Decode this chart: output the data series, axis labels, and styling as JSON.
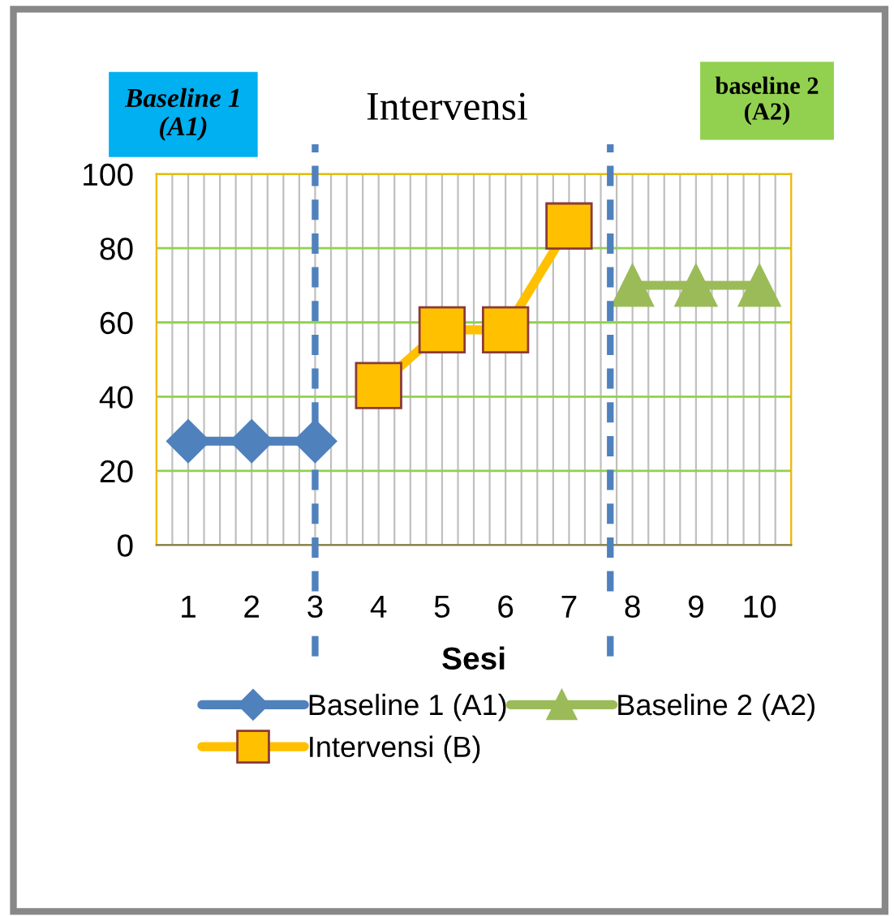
{
  "chart_data": {
    "type": "line",
    "x": [
      1,
      2,
      3,
      4,
      5,
      6,
      7,
      8,
      9,
      10
    ],
    "xlim": [
      0.5,
      10.5
    ],
    "xticks": [
      1,
      2,
      3,
      4,
      5,
      6,
      7,
      8,
      9,
      10
    ],
    "ylim": [
      0,
      100
    ],
    "yticks": [
      0,
      20,
      40,
      60,
      80,
      100
    ],
    "xlabel": "Sesi",
    "annotations": [
      "Baseline 1\n(A1)",
      "Intervensi",
      "baseline 2\n(A2)"
    ],
    "series": [
      {
        "name": "Baseline 1 (A1)",
        "color": "#4f81bd",
        "marker": "diamond",
        "values": [
          28,
          28,
          28,
          null,
          null,
          null,
          null,
          null,
          null,
          null
        ]
      },
      {
        "name": "Intervensi (B)",
        "color": "#ffc000",
        "marker": "square",
        "values": [
          null,
          null,
          null,
          43,
          58,
          58,
          86,
          null,
          null,
          null
        ]
      },
      {
        "name": "Baseline 2 (A2)",
        "color": "#9bbb59",
        "marker": "triangle",
        "values": [
          null,
          null,
          null,
          null,
          null,
          null,
          null,
          70,
          70,
          70
        ]
      }
    ],
    "ref_lines": [
      {
        "axis": "x",
        "value": 3,
        "color": "#4f81bd",
        "line_style": "dashed"
      },
      {
        "axis": "x",
        "value": 7.65,
        "color": "#4f81bd",
        "line_style": "dashed"
      }
    ],
    "grid": true,
    "legend": "bottom"
  }
}
